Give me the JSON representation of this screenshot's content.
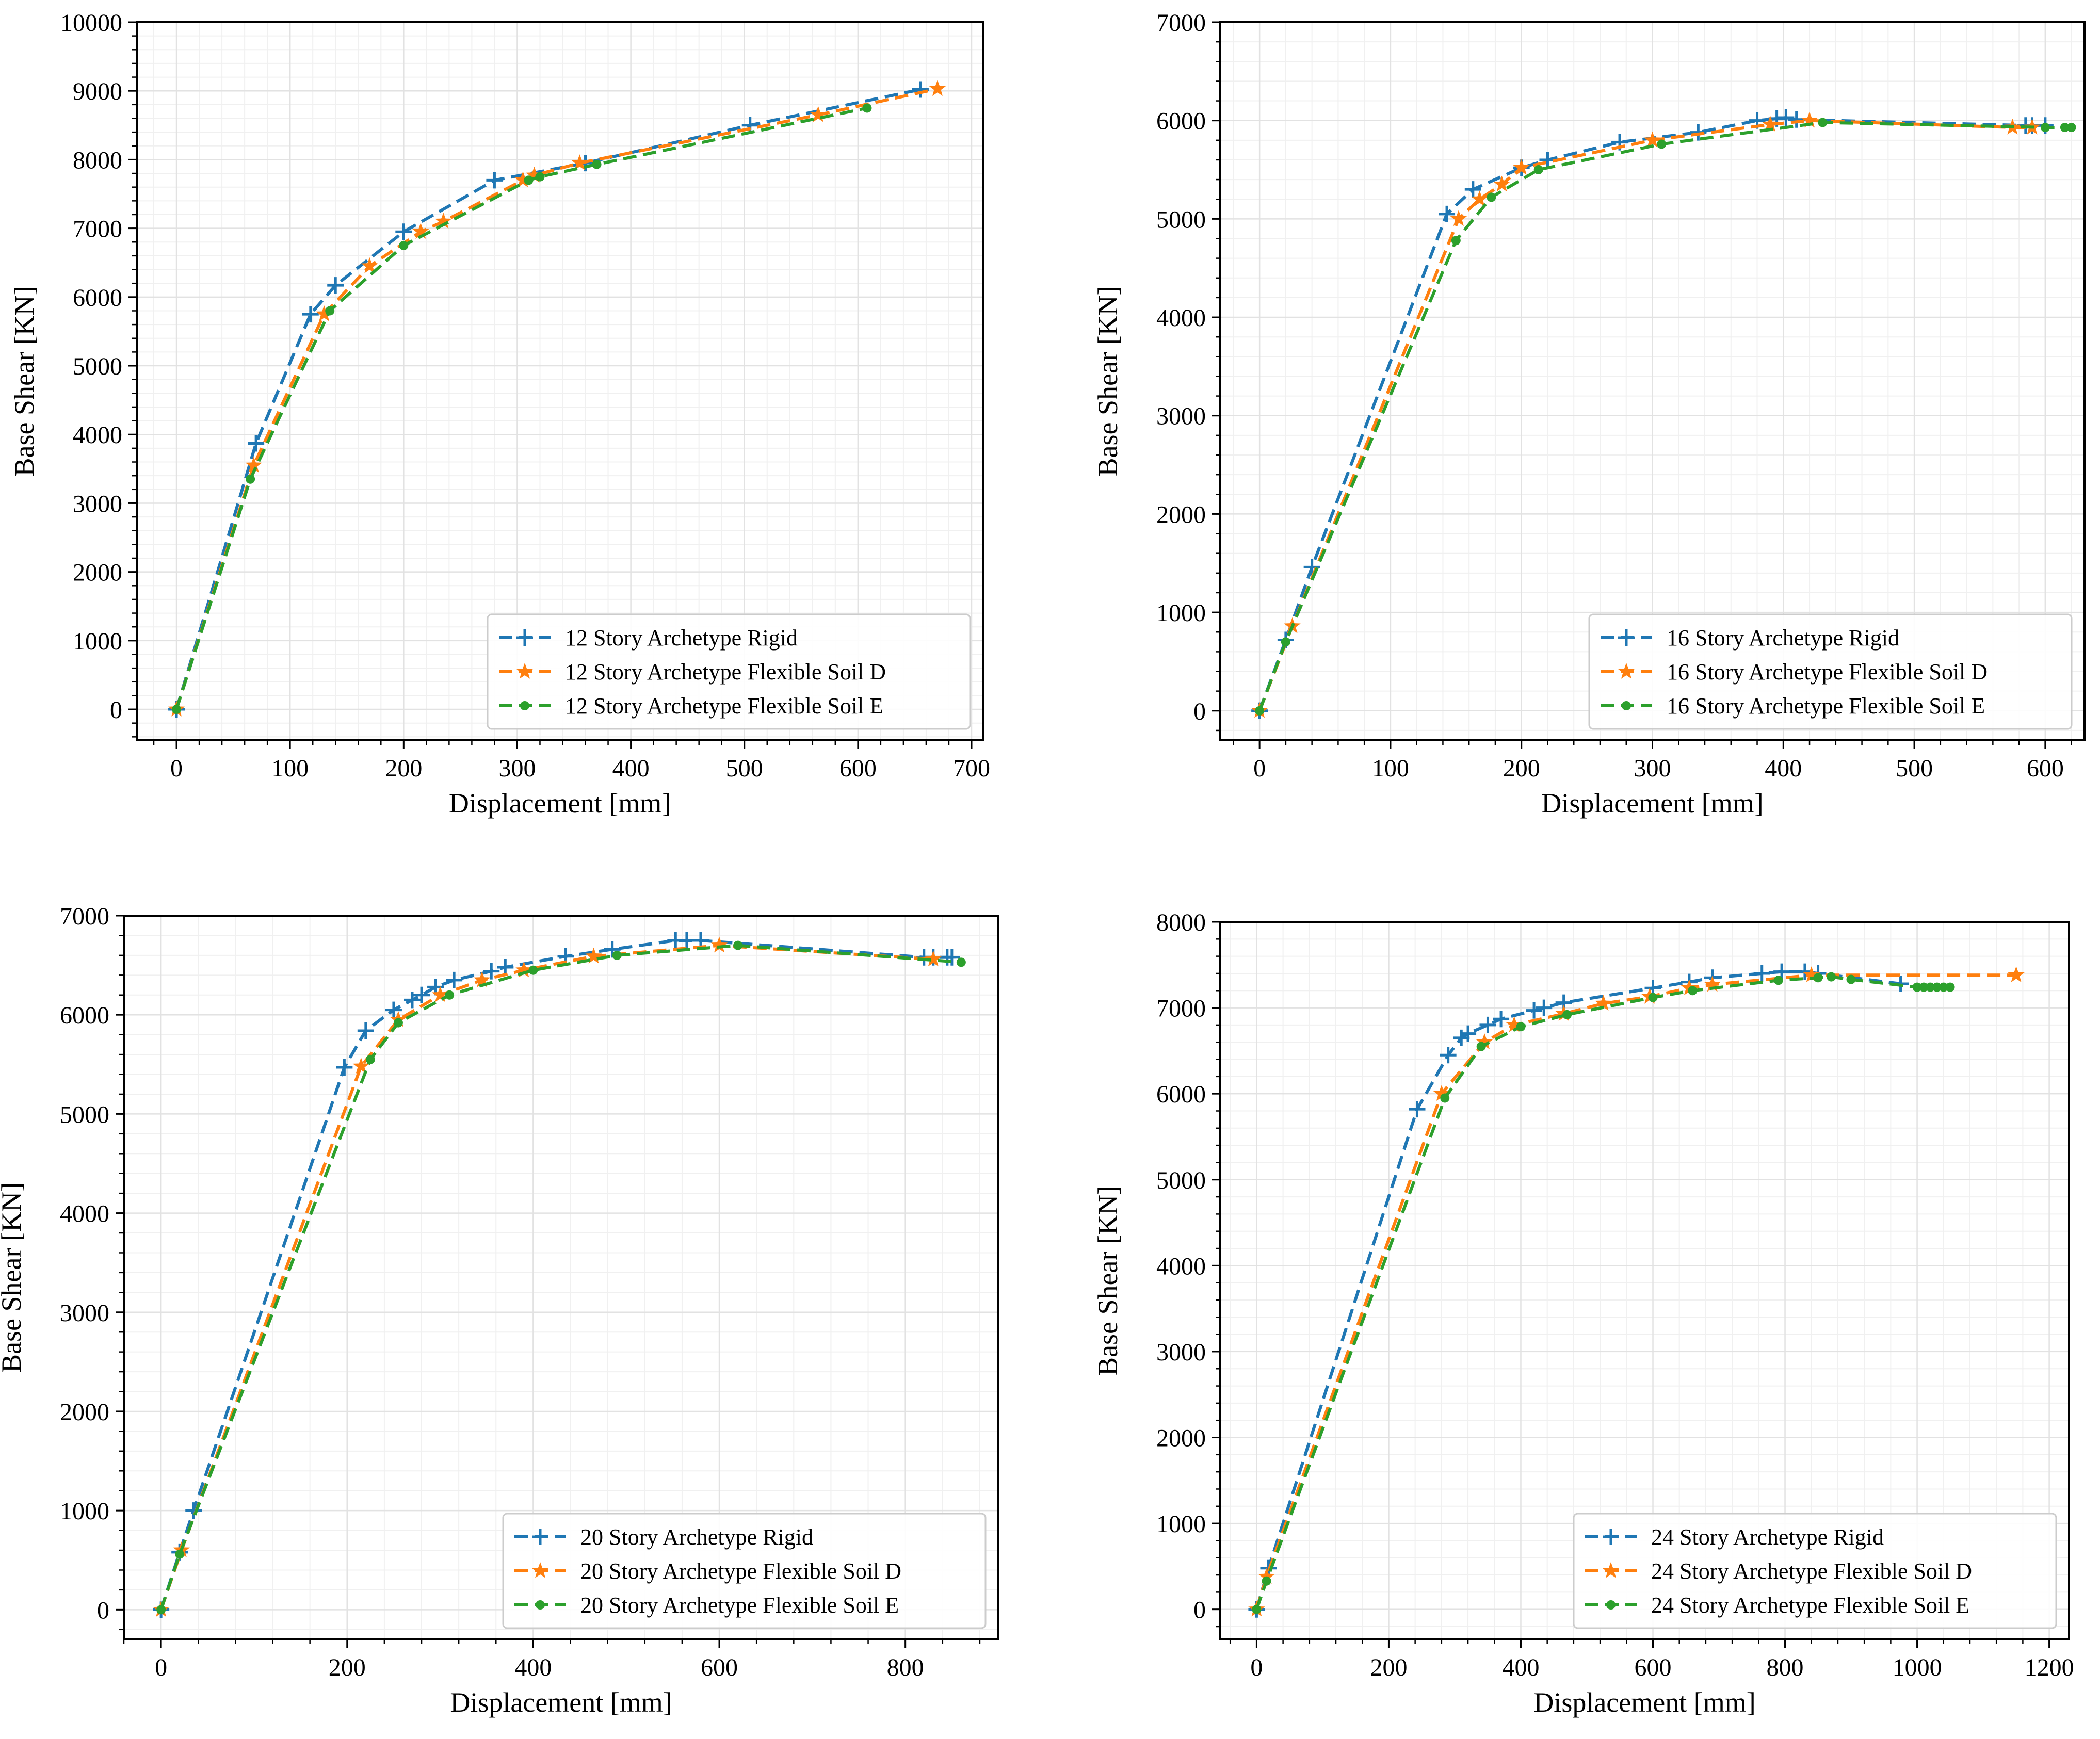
{
  "colors": {
    "rigid": "#1f77b4",
    "soilD": "#ff7f0e",
    "soilE": "#2ca02c"
  },
  "chart_data": [
    {
      "type": "line",
      "xlabel": "Displacement [mm]",
      "ylabel": "Base Shear [KN]",
      "xlim": [
        -35,
        710
      ],
      "ylim": [
        -450,
        10000
      ],
      "xticks": [
        0,
        100,
        200,
        300,
        400,
        500,
        600,
        700
      ],
      "yticks": [
        0,
        1000,
        2000,
        3000,
        4000,
        5000,
        6000,
        7000,
        8000,
        9000,
        10000
      ],
      "grid": true,
      "legend": "lower-right",
      "series": [
        {
          "name": "12 Story Archetype Rigid",
          "marker": "plus",
          "x": [
            0,
            70,
            118,
            140,
            200,
            280,
            360,
            505,
            655
          ],
          "y": [
            0,
            3870,
            5750,
            6170,
            6950,
            7700,
            7950,
            8500,
            9020
          ]
        },
        {
          "name": "12 Story Archetype Flexible Soil D",
          "marker": "star",
          "x": [
            0,
            68,
            130,
            170,
            215,
            235,
            305,
            315,
            355,
            565,
            670
          ],
          "y": [
            0,
            3550,
            5750,
            6450,
            6950,
            7100,
            7700,
            7770,
            7950,
            8650,
            9030
          ]
        },
        {
          "name": "12 Story Archetype Flexible Soil E",
          "marker": "dot",
          "x": [
            0,
            65,
            135,
            200,
            310,
            320,
            370,
            608
          ],
          "y": [
            0,
            3350,
            5800,
            6750,
            7700,
            7750,
            7930,
            8750
          ]
        }
      ]
    },
    {
      "type": "line",
      "xlabel": "Displacement [mm]",
      "ylabel": "Base Shear [KN]",
      "xlim": [
        -30,
        630
      ],
      "ylim": [
        -300,
        7000
      ],
      "xticks": [
        0,
        100,
        200,
        300,
        400,
        500,
        600
      ],
      "yticks": [
        0,
        1000,
        2000,
        3000,
        4000,
        5000,
        6000,
        7000
      ],
      "grid": true,
      "legend": "lower-right",
      "series": [
        {
          "name": "16 Story Archetype Rigid",
          "marker": "plus",
          "x": [
            0,
            20,
            40,
            143,
            163,
            200,
            220,
            275,
            335,
            380,
            395,
            402,
            410,
            585,
            590,
            600
          ],
          "y": [
            0,
            720,
            1460,
            5050,
            5300,
            5520,
            5600,
            5780,
            5880,
            6000,
            6020,
            6030,
            6010,
            5950,
            5950,
            5950
          ]
        },
        {
          "name": "16 Story Archetype Flexible Soil D",
          "marker": "star",
          "x": [
            0,
            25,
            152,
            168,
            185,
            200,
            300,
            390,
            420,
            575,
            590
          ],
          "y": [
            0,
            860,
            5000,
            5200,
            5350,
            5520,
            5800,
            5960,
            6000,
            5930,
            5930
          ]
        },
        {
          "name": "16 Story Archetype Flexible Soil E",
          "marker": "dot",
          "x": [
            0,
            20,
            150,
            177,
            213,
            307,
            430,
            600,
            615,
            620
          ],
          "y": [
            0,
            700,
            4780,
            5220,
            5500,
            5760,
            5980,
            5930,
            5930,
            5930
          ]
        }
      ]
    },
    {
      "type": "line",
      "xlabel": "Displacement [mm]",
      "ylabel": "Base Shear [KN]",
      "xlim": [
        -40,
        900
      ],
      "ylim": [
        -300,
        7000
      ],
      "xticks": [
        0,
        200,
        400,
        600,
        800
      ],
      "yticks": [
        0,
        1000,
        2000,
        3000,
        4000,
        5000,
        6000,
        7000
      ],
      "grid": true,
      "legend": "lower-right",
      "series": [
        {
          "name": "20 Story Archetype Rigid",
          "marker": "plus",
          "x": [
            0,
            20,
            35,
            197,
            220,
            250,
            270,
            280,
            295,
            315,
            355,
            370,
            435,
            485,
            553,
            565,
            580,
            820,
            830,
            845,
            850
          ],
          "y": [
            0,
            580,
            1000,
            5470,
            5840,
            6050,
            6150,
            6200,
            6280,
            6350,
            6440,
            6480,
            6590,
            6660,
            6750,
            6750,
            6750,
            6580,
            6580,
            6580,
            6580
          ]
        },
        {
          "name": "20 Story Archetype Flexible Soil D",
          "marker": "star",
          "x": [
            0,
            22,
            215,
            255,
            300,
            345,
            390,
            465,
            600,
            830
          ],
          "y": [
            0,
            600,
            5480,
            5950,
            6200,
            6350,
            6450,
            6590,
            6700,
            6560
          ]
        },
        {
          "name": "20 Story Archetype Flexible Soil E",
          "marker": "dot",
          "x": [
            0,
            20,
            225,
            255,
            310,
            400,
            490,
            620,
            860
          ],
          "y": [
            0,
            560,
            5550,
            5920,
            6200,
            6450,
            6600,
            6700,
            6530
          ]
        }
      ]
    },
    {
      "type": "line",
      "xlabel": "Displacement [mm]",
      "ylabel": "Base Shear [KN]",
      "xlim": [
        -55,
        1230
      ],
      "ylim": [
        -350,
        8000
      ],
      "xticks": [
        0,
        200,
        400,
        600,
        800,
        1000,
        1200
      ],
      "yticks": [
        0,
        1000,
        2000,
        3000,
        4000,
        5000,
        6000,
        7000,
        8000
      ],
      "grid": true,
      "legend": "lower-right",
      "series": [
        {
          "name": "24 Story Archetype Rigid",
          "marker": "plus",
          "x": [
            0,
            18,
            243,
            290,
            310,
            320,
            350,
            370,
            420,
            435,
            465,
            600,
            655,
            690,
            765,
            795,
            830,
            850,
            975
          ],
          "y": [
            0,
            480,
            5820,
            6450,
            6650,
            6700,
            6800,
            6870,
            6970,
            7000,
            7060,
            7230,
            7300,
            7350,
            7400,
            7420,
            7420,
            7400,
            7280
          ]
        },
        {
          "name": "24 Story Archetype Flexible Soil D",
          "marker": "star",
          "x": [
            0,
            15,
            280,
            345,
            390,
            465,
            525,
            595,
            655,
            690,
            840,
            1150
          ],
          "y": [
            0,
            380,
            6000,
            6600,
            6800,
            6930,
            7050,
            7130,
            7230,
            7270,
            7380,
            7380
          ]
        },
        {
          "name": "24 Story Archetype Flexible Soil E",
          "marker": "dot",
          "x": [
            0,
            15,
            285,
            340,
            400,
            470,
            600,
            660,
            790,
            850,
            870,
            900,
            1000,
            1010,
            1020,
            1030,
            1040,
            1050
          ],
          "y": [
            0,
            330,
            5950,
            6550,
            6780,
            6920,
            7120,
            7200,
            7320,
            7350,
            7360,
            7330,
            7240,
            7240,
            7240,
            7240,
            7240,
            7240
          ]
        }
      ]
    }
  ]
}
